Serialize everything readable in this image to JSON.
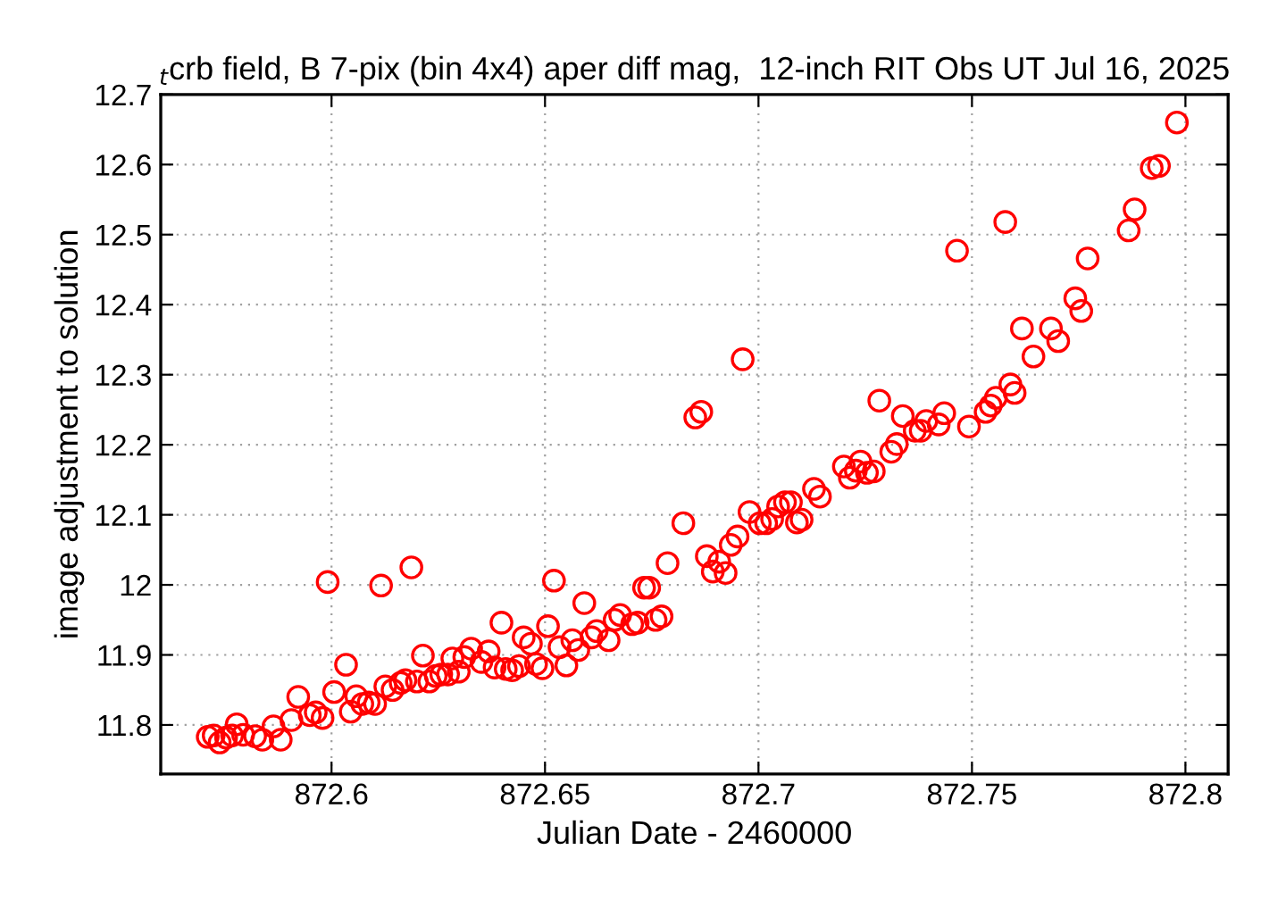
{
  "chart_data": {
    "type": "scatter",
    "title": "$_{t}$crb field, B 7-pix (bin 4x4) aper diff mag,  12-inch RIT Obs UT Jul 16, 2025",
    "xlabel": "Julian Date - 2460000",
    "ylabel": "image adjustment to solution",
    "xlim": [
      872.56,
      872.81
    ],
    "ylim": [
      11.73,
      12.7
    ],
    "xticks": [
      872.6,
      872.65,
      872.7,
      872.75,
      872.8
    ],
    "yticks": [
      11.8,
      11.9,
      {
        "value": 12.0,
        "label": "12"
      },
      12.1,
      12.2,
      12.3,
      12.4,
      12.5,
      12.6,
      12.7
    ],
    "grid": true,
    "marker": "circle",
    "series": [
      {
        "color": "#ff0000",
        "x": [
          872.571,
          872.5724,
          872.5738,
          872.5753,
          872.5767,
          872.5778,
          872.5793,
          872.5821,
          872.5838,
          872.5864,
          872.5881,
          872.5906,
          872.5922,
          872.5949,
          872.5963,
          872.5979,
          872.5991,
          872.6006,
          872.6034,
          872.6045,
          872.6058,
          872.6072,
          872.6087,
          872.6102,
          872.6116,
          872.6126,
          872.6143,
          872.6162,
          872.6173,
          872.6187,
          872.62,
          872.6214,
          872.6229,
          872.6244,
          872.6257,
          872.6273,
          872.6283,
          872.6298,
          872.6311,
          872.6327,
          872.6351,
          872.6368,
          872.6382,
          872.6398,
          872.6408,
          872.6423,
          872.6439,
          872.645,
          872.6467,
          872.6479,
          872.6494,
          872.6507,
          872.6521,
          872.6534,
          872.655,
          872.6564,
          872.6578,
          872.6592,
          872.6609,
          872.6621,
          872.6649,
          872.6663,
          872.6676,
          872.6704,
          872.6717,
          872.6732,
          872.6744,
          872.6759,
          872.6773,
          872.6787,
          872.6824,
          872.6852,
          872.6866,
          872.6879,
          872.6893,
          872.6908,
          872.6923,
          872.6935,
          872.6951,
          872.6963,
          872.6979,
          872.7003,
          872.7018,
          872.7032,
          872.7046,
          872.7062,
          872.7076,
          872.709,
          872.7101,
          872.713,
          872.7144,
          872.72,
          872.7214,
          872.7228,
          872.7239,
          872.7254,
          872.727,
          872.7283,
          872.7311,
          872.7324,
          872.7338,
          872.7366,
          872.738,
          872.7393,
          872.7422,
          872.7435,
          872.7465,
          872.7493,
          872.7532,
          872.7544,
          872.7556,
          872.7578,
          872.759,
          872.76,
          872.7617,
          872.7644,
          872.7685,
          872.7702,
          872.7742,
          872.7756,
          872.7771,
          872.7867,
          872.7881,
          872.7921,
          872.7938,
          872.798
        ],
        "values": [
          11.783,
          11.785,
          11.775,
          11.782,
          11.785,
          11.801,
          11.786,
          11.784,
          11.779,
          11.798,
          11.779,
          11.807,
          11.84,
          11.814,
          11.818,
          11.81,
          12.004,
          11.847,
          11.886,
          11.819,
          11.841,
          11.83,
          11.832,
          11.83,
          11.999,
          11.855,
          11.85,
          11.86,
          11.864,
          12.025,
          11.862,
          11.899,
          11.862,
          11.87,
          11.872,
          11.872,
          11.895,
          11.876,
          11.897,
          11.909,
          11.89,
          11.905,
          11.882,
          11.946,
          11.88,
          11.878,
          11.884,
          11.925,
          11.916,
          11.887,
          11.881,
          11.941,
          12.006,
          11.911,
          11.885,
          11.921,
          11.907,
          11.974,
          11.925,
          11.934,
          11.921,
          11.95,
          11.957,
          11.944,
          11.946,
          11.996,
          11.996,
          11.95,
          11.955,
          12.031,
          12.088,
          12.239,
          12.247,
          12.041,
          12.019,
          12.033,
          12.017,
          12.057,
          12.069,
          12.322,
          12.104,
          12.088,
          12.088,
          12.094,
          12.112,
          12.118,
          12.118,
          12.089,
          12.093,
          12.137,
          12.126,
          12.169,
          12.153,
          12.163,
          12.176,
          12.16,
          12.162,
          12.263,
          12.19,
          12.201,
          12.241,
          12.22,
          12.22,
          12.234,
          12.229,
          12.245,
          12.477,
          12.226,
          12.247,
          12.256,
          12.267,
          12.518,
          12.286,
          12.274,
          12.366,
          12.326,
          12.366,
          12.348,
          12.409,
          12.391,
          12.466,
          12.506,
          12.536,
          12.595,
          12.598,
          12.66
        ]
      }
    ]
  }
}
